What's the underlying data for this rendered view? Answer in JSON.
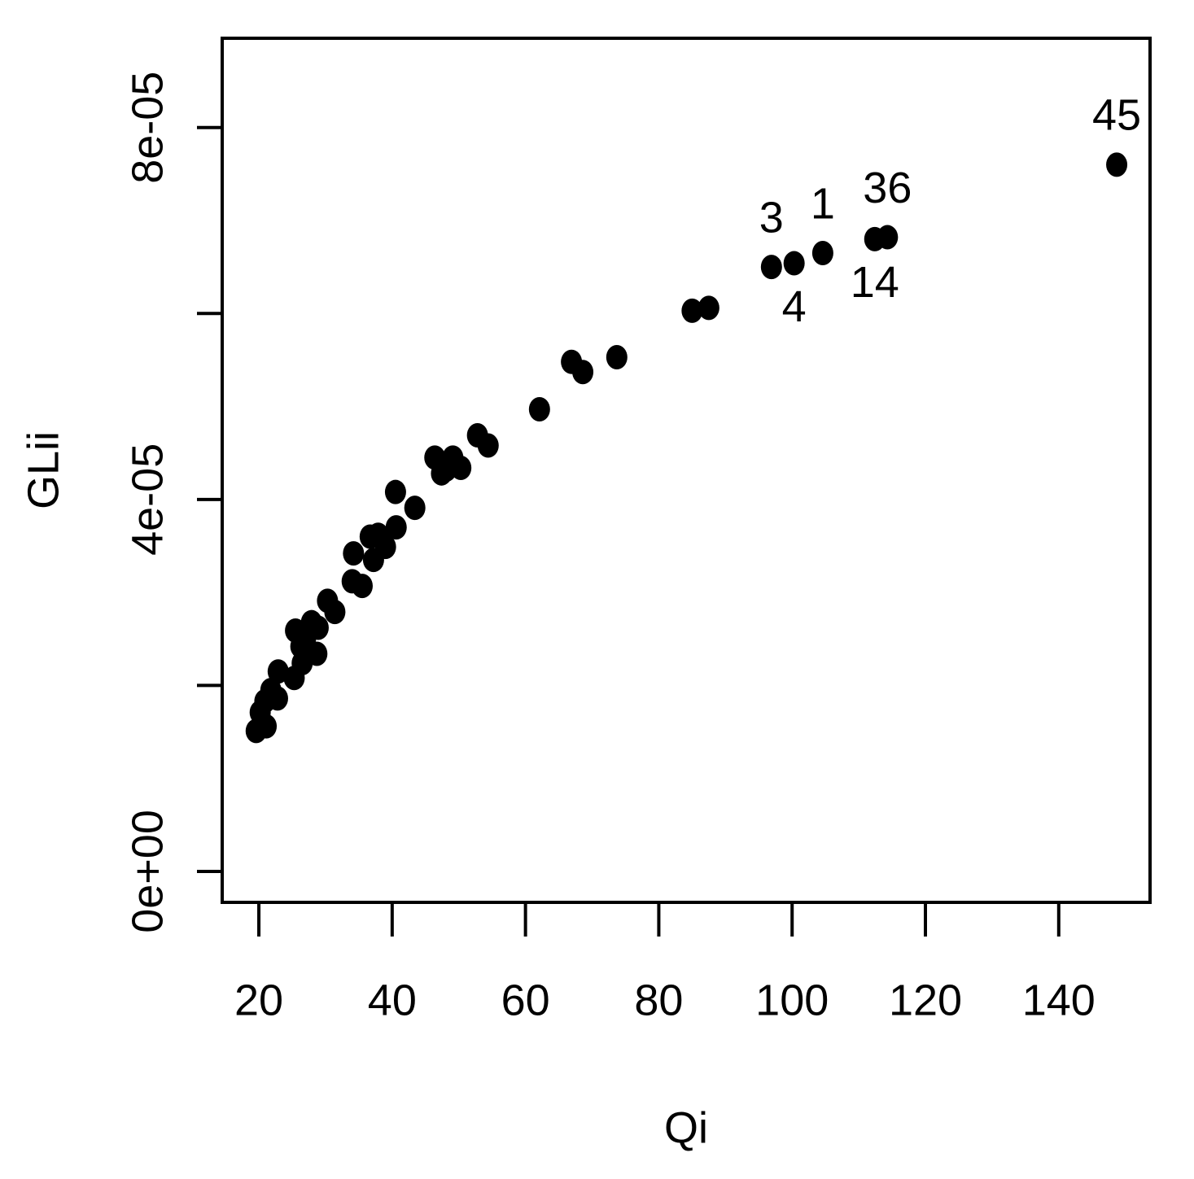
{
  "chart_data": {
    "type": "scatter",
    "x_label": "Qi",
    "y_label": "GLii",
    "xlim": [
      14.5,
      153.7
    ],
    "ylim": [
      -3.33e-06,
      8.96e-05
    ],
    "xticks": [
      20,
      40,
      60,
      80,
      100,
      120,
      140
    ],
    "yticks": [
      {
        "value": 0,
        "label": "0e+00"
      },
      {
        "value": 2e-05,
        "label": null
      },
      {
        "value": 4e-05,
        "label": "4e-05"
      },
      {
        "value": 6e-05,
        "label": null
      },
      {
        "value": 8e-05,
        "label": "8e-05"
      }
    ],
    "color": "#000000",
    "series": [
      {
        "name": null,
        "color": "#000000",
        "x": [
          19.6,
          21.1,
          20.2,
          20.9,
          21.8,
          22.8,
          22.9,
          25.3,
          26.3,
          26.5,
          28.7,
          25.5,
          27.0,
          27.9,
          28.9,
          30.3,
          31.4,
          34.0,
          35.5,
          34.2,
          37.2,
          36.7,
          37.9,
          39.0,
          40.6,
          40.5,
          43.4,
          46.4,
          47.4,
          48.1,
          49.1,
          50.3,
          52.8,
          54.4,
          62.1,
          66.9,
          68.6,
          73.7,
          85.0,
          87.5,
          96.9,
          100.3,
          104.6,
          112.4,
          114.3,
          148.7
        ],
        "values": [
          1.51e-05,
          1.56e-05,
          1.71e-05,
          1.83e-05,
          1.95e-05,
          1.86e-05,
          2.15e-05,
          2.08e-05,
          2.42e-05,
          2.24e-05,
          2.34e-05,
          2.59e-05,
          2.5e-05,
          2.68e-05,
          2.62e-05,
          2.91e-05,
          2.79e-05,
          3.12e-05,
          3.07e-05,
          3.42e-05,
          3.35e-05,
          3.6e-05,
          3.62e-05,
          3.49e-05,
          3.7e-05,
          4.08e-05,
          3.91e-05,
          4.45e-05,
          4.28e-05,
          4.32e-05,
          4.45e-05,
          4.34e-05,
          4.69e-05,
          4.58e-05,
          4.97e-05,
          5.48e-05,
          5.37e-05,
          5.53e-05,
          6.03e-05,
          6.06e-05,
          6.5e-05,
          6.54e-05,
          6.65e-05,
          6.8e-05,
          6.82e-05,
          7.6e-05
        ],
        "point_labels": [
          null,
          null,
          null,
          null,
          null,
          null,
          null,
          null,
          null,
          null,
          null,
          null,
          null,
          null,
          null,
          null,
          null,
          null,
          null,
          null,
          null,
          null,
          null,
          null,
          null,
          null,
          null,
          null,
          null,
          null,
          null,
          null,
          null,
          null,
          null,
          null,
          null,
          null,
          null,
          null,
          "3",
          "4",
          "1",
          "14",
          "36",
          "45"
        ],
        "label_positions": [
          null,
          null,
          null,
          null,
          null,
          null,
          null,
          null,
          null,
          null,
          null,
          null,
          null,
          null,
          null,
          null,
          null,
          null,
          null,
          null,
          null,
          null,
          null,
          null,
          null,
          null,
          null,
          null,
          null,
          null,
          null,
          null,
          null,
          null,
          null,
          null,
          null,
          null,
          null,
          null,
          "above",
          "below",
          "above",
          "below",
          "above",
          "above"
        ]
      }
    ]
  }
}
